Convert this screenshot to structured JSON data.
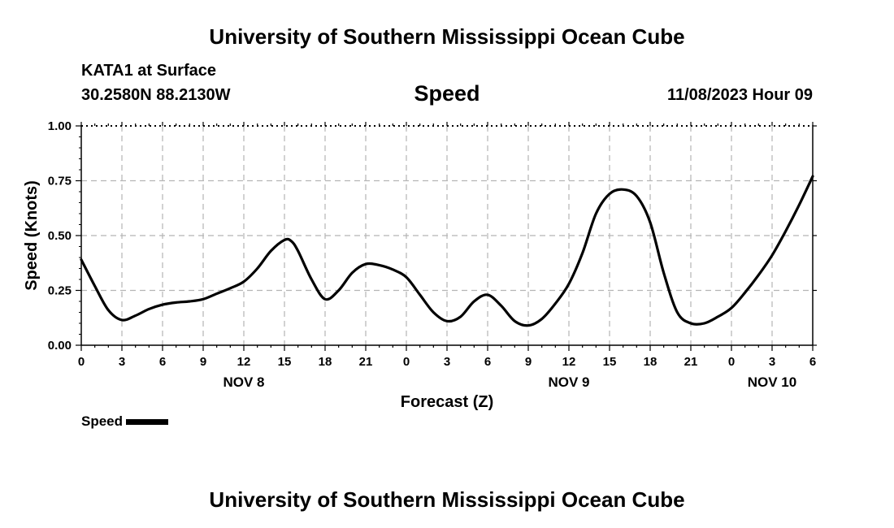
{
  "header": {
    "title": "University of Southern Mississippi Ocean Cube",
    "station": "KATA1 at Surface",
    "coordinates": "30.2580N  88.2130W",
    "parameter": "Speed",
    "datetime": "11/08/2023 Hour 09"
  },
  "footer": {
    "title": "University of Southern Mississippi Ocean Cube"
  },
  "legend": {
    "label": "Speed"
  },
  "chart_data": {
    "type": "line",
    "title": "Speed",
    "xlabel": "Forecast (Z)",
    "ylabel": "Speed (Knots)",
    "ylim": [
      0,
      1
    ],
    "xlim": [
      0,
      54
    ],
    "grid": true,
    "legend_position": "bottom-left",
    "line_color": "#000000",
    "x_tick_values": [
      0,
      3,
      6,
      9,
      12,
      15,
      18,
      21,
      24,
      27,
      30,
      33,
      36,
      39,
      42,
      45,
      48,
      51,
      54
    ],
    "x_tick_labels": [
      "0",
      "3",
      "6",
      "9",
      "12",
      "15",
      "18",
      "21",
      "0",
      "3",
      "6",
      "9",
      "12",
      "15",
      "18",
      "21",
      "0",
      "3",
      "6"
    ],
    "y_ticks": [
      0.0,
      0.25,
      0.5,
      0.75,
      1.0
    ],
    "y_tick_labels": [
      "0.00",
      "0.25",
      "0.50",
      "0.75",
      "1.00"
    ],
    "day_labels": [
      {
        "x": 12,
        "label": "NOV 8"
      },
      {
        "x": 36,
        "label": "NOV 9"
      },
      {
        "x": 51,
        "label": "NOV 10"
      }
    ],
    "series": [
      {
        "name": "Speed",
        "x": [
          0,
          1,
          2,
          3,
          4,
          5,
          6,
          7,
          8,
          9,
          10,
          11,
          12,
          13,
          14,
          15,
          15.5,
          16,
          17,
          18,
          19,
          20,
          21,
          22,
          23,
          24,
          25,
          26,
          27,
          28,
          29,
          30,
          31,
          32,
          33,
          34,
          35,
          36,
          37,
          38,
          39,
          40,
          41,
          42,
          43,
          44,
          45,
          46,
          47,
          48,
          49,
          50,
          51,
          52,
          53,
          54
        ],
        "y": [
          0.39,
          0.27,
          0.16,
          0.115,
          0.135,
          0.165,
          0.185,
          0.195,
          0.2,
          0.21,
          0.235,
          0.26,
          0.29,
          0.35,
          0.43,
          0.48,
          0.475,
          0.43,
          0.3,
          0.21,
          0.25,
          0.33,
          0.37,
          0.365,
          0.345,
          0.31,
          0.23,
          0.15,
          0.11,
          0.13,
          0.2,
          0.23,
          0.18,
          0.11,
          0.09,
          0.12,
          0.19,
          0.28,
          0.42,
          0.6,
          0.69,
          0.71,
          0.68,
          0.56,
          0.33,
          0.15,
          0.1,
          0.1,
          0.13,
          0.17,
          0.24,
          0.32,
          0.41,
          0.52,
          0.64,
          0.77
        ]
      }
    ]
  }
}
